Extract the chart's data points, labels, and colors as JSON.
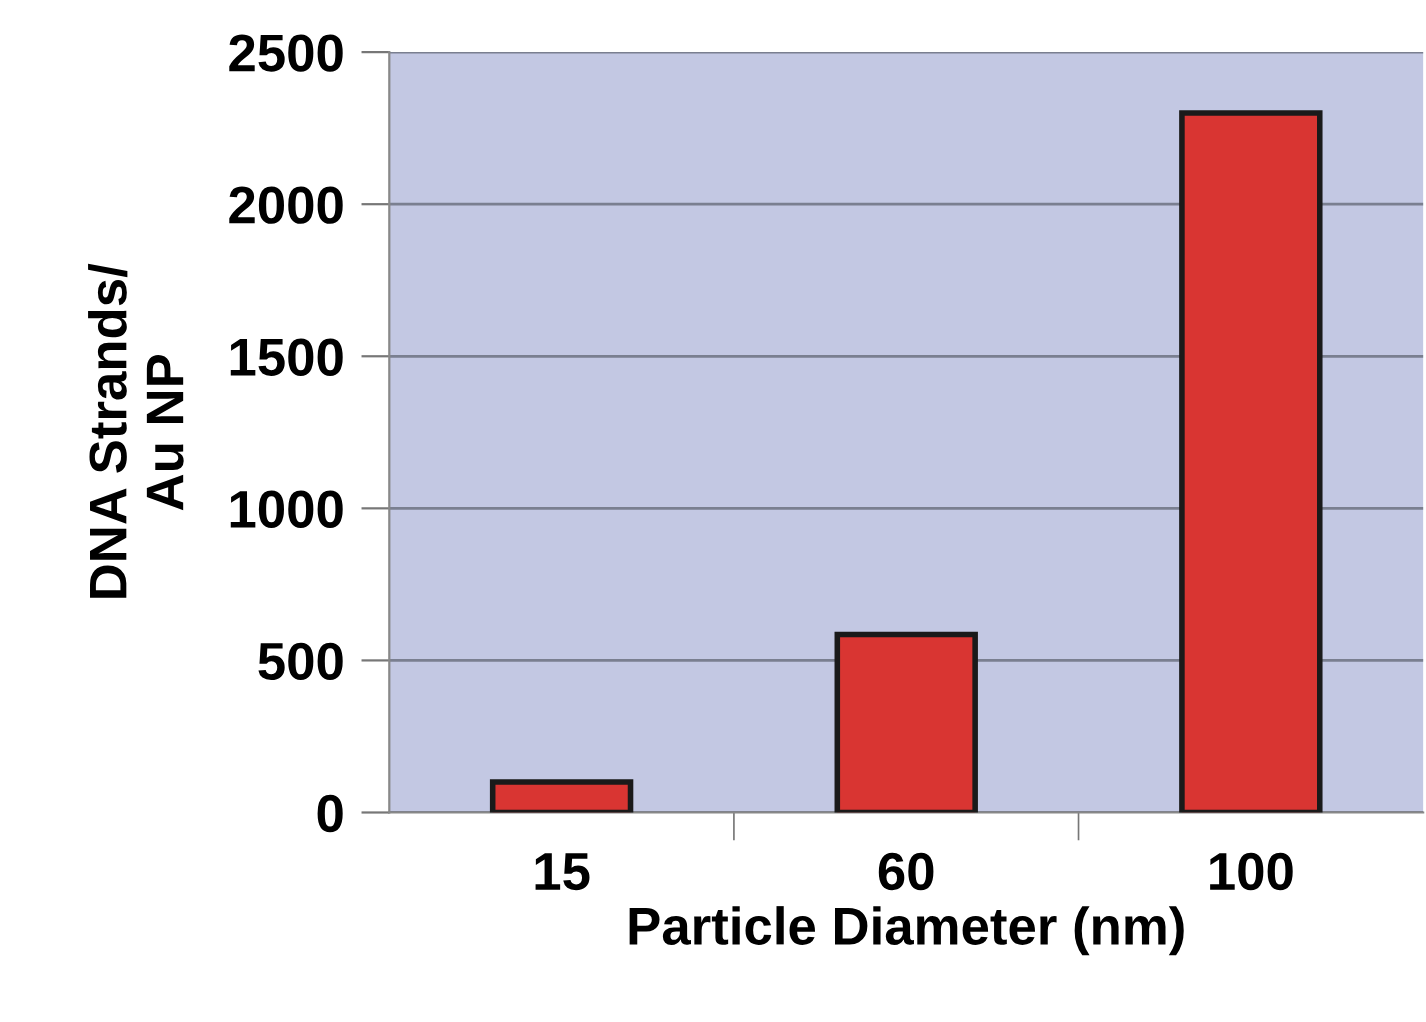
{
  "chart_data": {
    "type": "bar",
    "xlabel": "Particle Diameter (nm)",
    "ylabel": "DNA Strands/\nAu NP",
    "categories": [
      "15",
      "60",
      "100"
    ],
    "values": [
      100,
      585,
      2300
    ],
    "color": "#d93532",
    "ylim": [
      0,
      2500
    ],
    "yticks": [
      0,
      500,
      1000,
      1500,
      2000,
      2500
    ],
    "grid": "y"
  }
}
